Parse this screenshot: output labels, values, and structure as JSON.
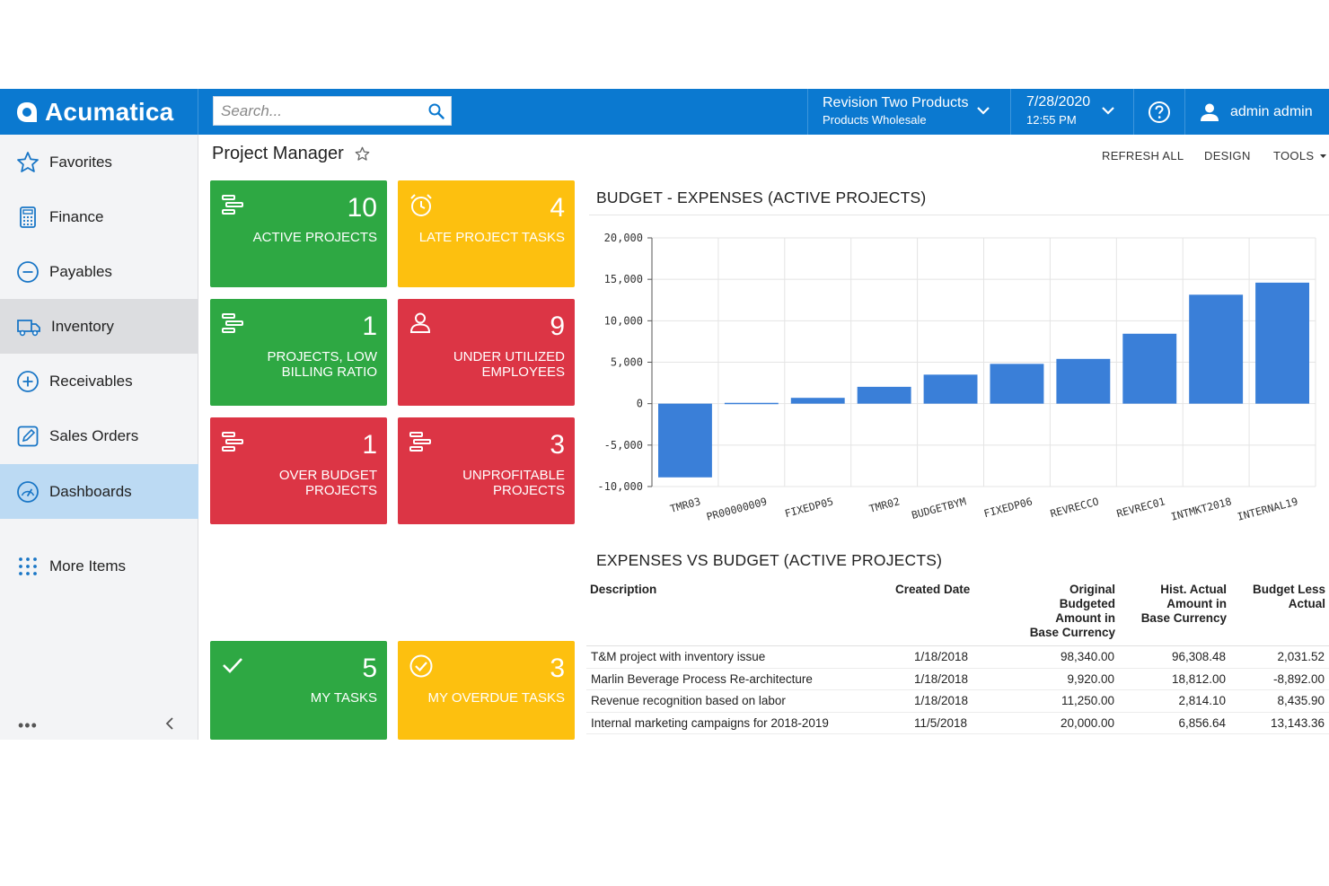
{
  "app": {
    "name": "Acumatica"
  },
  "search": {
    "placeholder": "Search..."
  },
  "company": {
    "name": "Revision Two Products",
    "branch": "Products Wholesale"
  },
  "datetime": {
    "date": "7/28/2020",
    "time": "12:55 PM"
  },
  "user": {
    "name": "admin admin"
  },
  "sidebar": {
    "items": [
      {
        "label": "Favorites",
        "icon": "star-icon"
      },
      {
        "label": "Finance",
        "icon": "calculator-icon"
      },
      {
        "label": "Payables",
        "icon": "minus-circle-icon"
      },
      {
        "label": "Inventory",
        "icon": "truck-icon"
      },
      {
        "label": "Receivables",
        "icon": "plus-circle-icon"
      },
      {
        "label": "Sales Orders",
        "icon": "edit-icon"
      },
      {
        "label": "Dashboards",
        "icon": "gauge-icon"
      },
      {
        "label": "More Items",
        "icon": "grid-dots-icon"
      }
    ],
    "dots": "•••"
  },
  "page": {
    "title": "Project Manager"
  },
  "toolbar": {
    "refresh": "REFRESH ALL",
    "design": "DESIGN",
    "tools": "TOOLS"
  },
  "tiles": [
    {
      "count": "10",
      "label": "ACTIVE PROJECTS",
      "color": "#2ea843",
      "icon": "project-bars-icon"
    },
    {
      "count": "4",
      "label": "LATE PROJECT TASKS",
      "color": "#fdc00f",
      "icon": "alarm-clock-icon"
    },
    {
      "count": "1",
      "label": "PROJECTS, LOW BILLING RATIO",
      "color": "#2ea843",
      "icon": "project-bars-icon"
    },
    {
      "count": "9",
      "label": "UNDER UTILIZED EMPLOYEES",
      "color": "#dc3545",
      "icon": "person-icon"
    },
    {
      "count": "1",
      "label": "OVER BUDGET PROJECTS",
      "color": "#dc3545",
      "icon": "project-bars-icon"
    },
    {
      "count": "3",
      "label": "UNPROFITABLE PROJECTS",
      "color": "#dc3545",
      "icon": "project-bars-icon"
    },
    {
      "count": "5",
      "label": "MY TASKS",
      "color": "#2ea843",
      "icon": "check-icon"
    },
    {
      "count": "3",
      "label": "MY OVERDUE TASKS",
      "color": "#fdc00f",
      "icon": "check-circle-icon"
    }
  ],
  "chart_title": "BUDGET - EXPENSES (ACTIVE PROJECTS)",
  "chart_data": {
    "type": "bar",
    "title": "BUDGET - EXPENSES (ACTIVE PROJECTS)",
    "categories": [
      "TMR03",
      "PR00000009",
      "FIXEDP05",
      "TMR02",
      "BUDGETBYM",
      "FIXEDP06",
      "REVRECCO",
      "REVREC01",
      "INTMKT2018",
      "INTERNAL19"
    ],
    "values": [
      -8892,
      100,
      700,
      2031.52,
      3500,
      4800,
      5400,
      8435.9,
      13143.36,
      14600
    ],
    "ylim": [
      -10000,
      20000
    ],
    "yticks": [
      "20,000",
      "15,000",
      "10,000",
      "5,000",
      "0",
      "-5,000",
      "-10,000"
    ],
    "ytick_values": [
      20000,
      15000,
      10000,
      5000,
      0,
      -5000,
      -10000
    ],
    "bar_color": "#3a7fd8",
    "grid": true,
    "xlabel": "",
    "ylabel": ""
  },
  "table": {
    "title": "EXPENSES VS BUDGET (ACTIVE PROJECTS)",
    "headers": {
      "description": "Description",
      "created": "Created Date",
      "original": [
        "Original",
        "Budgeted",
        "Amount in",
        "Base Currency"
      ],
      "actual": [
        "Hist. Actual",
        "Amount in",
        "Base Currency"
      ],
      "diff": [
        "Budget Less",
        "Actual"
      ]
    },
    "rows": [
      {
        "description": "T&M project with inventory issue",
        "created": "1/18/2018",
        "original": "98,340.00",
        "actual": "96,308.48",
        "diff": "2,031.52"
      },
      {
        "description": "Marlin Beverage Process Re-architecture",
        "created": "1/18/2018",
        "original": "9,920.00",
        "actual": "18,812.00",
        "diff": "-8,892.00"
      },
      {
        "description": "Revenue recognition based on labor",
        "created": "1/18/2018",
        "original": "11,250.00",
        "actual": "2,814.10",
        "diff": "8,435.90"
      },
      {
        "description": "Internal marketing campaigns for 2018-2019",
        "created": "11/5/2018",
        "original": "20,000.00",
        "actual": "6,856.64",
        "diff": "13,143.36"
      }
    ]
  }
}
